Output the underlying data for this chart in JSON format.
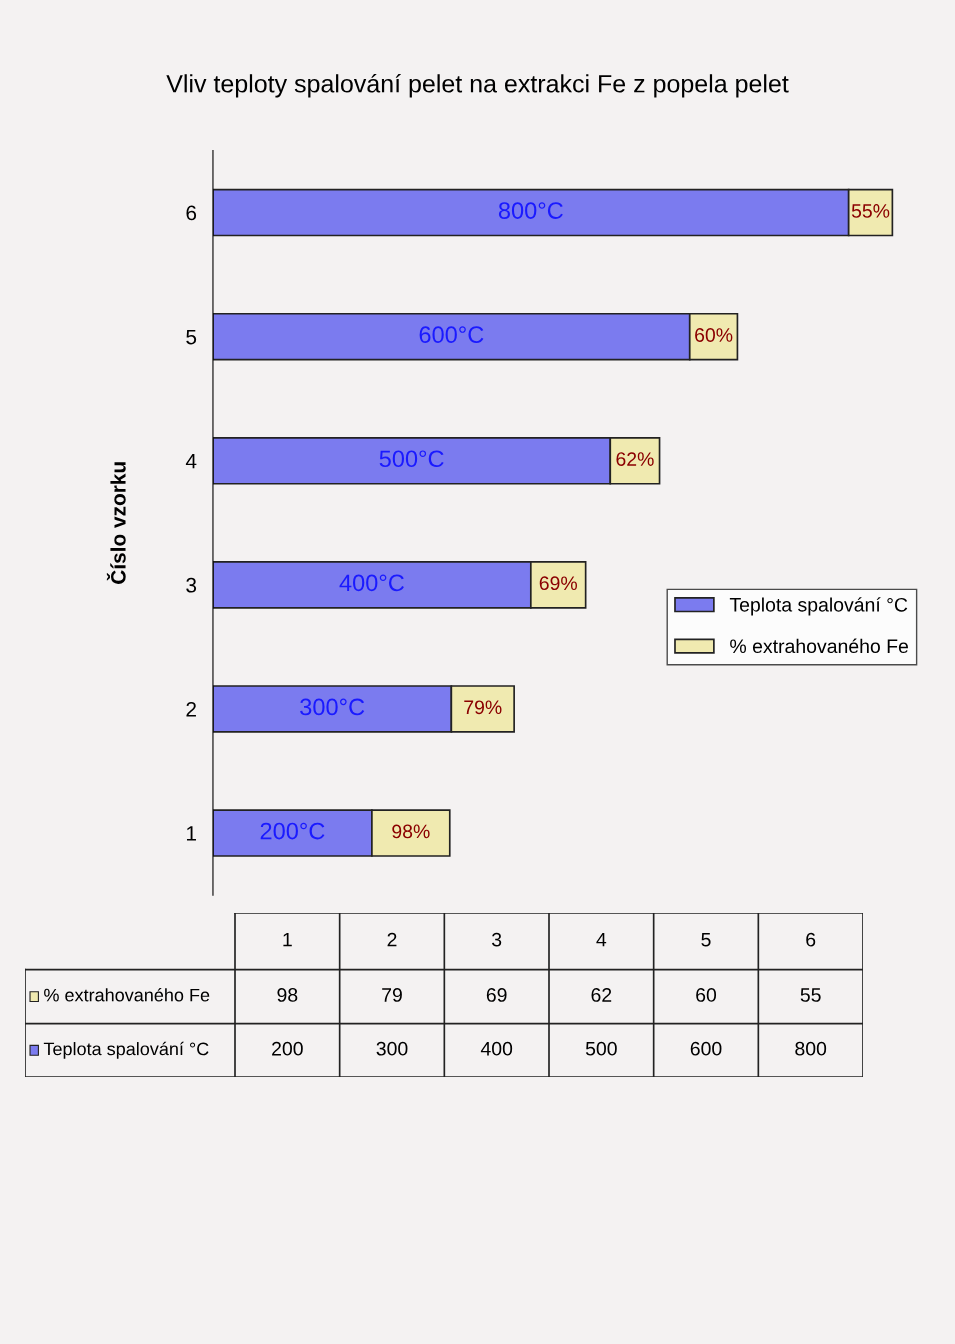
{
  "chart_data": {
    "type": "bar",
    "orientation": "horizontal",
    "stacked": true,
    "title": "Vliv teploty spalování pelet na extrakci Fe z popela pelet",
    "ylabel": "Číslo vzorku",
    "categories": [
      "6",
      "5",
      "4",
      "3",
      "2",
      "1"
    ],
    "tick_labels": "y",
    "series": [
      {
        "name": "Teplota spalování °C",
        "color": "#7b7bef",
        "values": [
          800,
          600,
          500,
          400,
          300,
          200
        ],
        "value_labels": [
          "800°C",
          "600°C",
          "500°C",
          "400°C",
          "300°C",
          "200°C"
        ]
      },
      {
        "name": "% extrahovaného Fe",
        "color": "#f0eab0",
        "values": [
          55,
          60,
          62,
          69,
          79,
          98
        ],
        "value_labels": [
          "55%",
          "60%",
          "62%",
          "69%",
          "79%",
          "98%"
        ]
      }
    ],
    "annotations": [
      "98",
      "79",
      "69",
      "62",
      "60",
      "55",
      "200",
      "300",
      "400",
      "500",
      "600",
      "800"
    ],
    "legend": "right",
    "grid": false
  }
}
